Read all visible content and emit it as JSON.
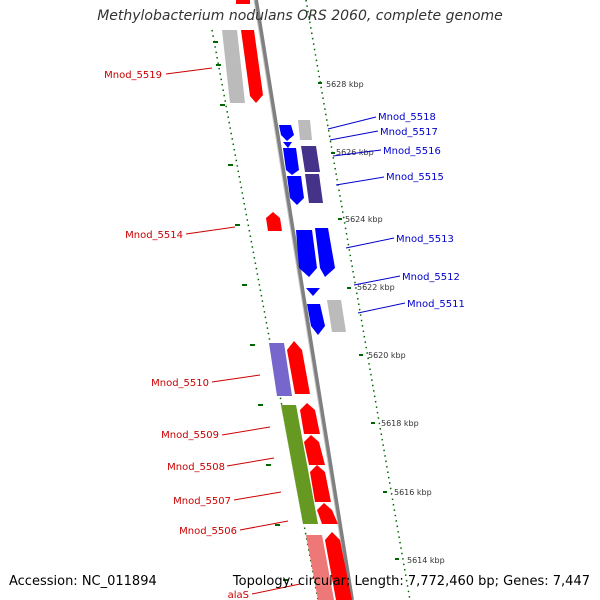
{
  "title": "Methylobacterium nodulans ORS 2060, complete genome",
  "footer": {
    "accession": "Accession: NC_011894",
    "summary": "Topology: circular; Length: 7,772,460 bp; Genes: 7,447"
  },
  "colors": {
    "forward_gene": "#ff0000",
    "reverse_gene": "#0000ff",
    "grey_gene": "#bbbbbb",
    "purple_gene": "#443388",
    "light_purple_gene": "#7766cc",
    "green_gene": "#669922",
    "pink_gene": "#ee7777",
    "axis": "#808080",
    "tick_dots": "#006600"
  },
  "ticks": [
    "5628 kbp",
    "5626 kbp",
    "5624 kbp",
    "5622 kbp",
    "5620 kbp",
    "5618 kbp",
    "5616 kbp",
    "5614 kbp"
  ],
  "genes": [
    {
      "label": "Mnod_5519",
      "strand": "+"
    },
    {
      "label": "Mnod_5518",
      "strand": "-"
    },
    {
      "label": "Mnod_5517",
      "strand": "-"
    },
    {
      "label": "Mnod_5516",
      "strand": "-"
    },
    {
      "label": "Mnod_5515",
      "strand": "-"
    },
    {
      "label": "Mnod_5514",
      "strand": "+"
    },
    {
      "label": "Mnod_5513",
      "strand": "-"
    },
    {
      "label": "Mnod_5512",
      "strand": "-"
    },
    {
      "label": "Mnod_5511",
      "strand": "-"
    },
    {
      "label": "Mnod_5510",
      "strand": "+"
    },
    {
      "label": "Mnod_5509",
      "strand": "+"
    },
    {
      "label": "Mnod_5508",
      "strand": "+"
    },
    {
      "label": "Mnod_5507",
      "strand": "+"
    },
    {
      "label": "Mnod_5506",
      "strand": "+"
    },
    {
      "label": "alaS",
      "strand": "+"
    }
  ]
}
